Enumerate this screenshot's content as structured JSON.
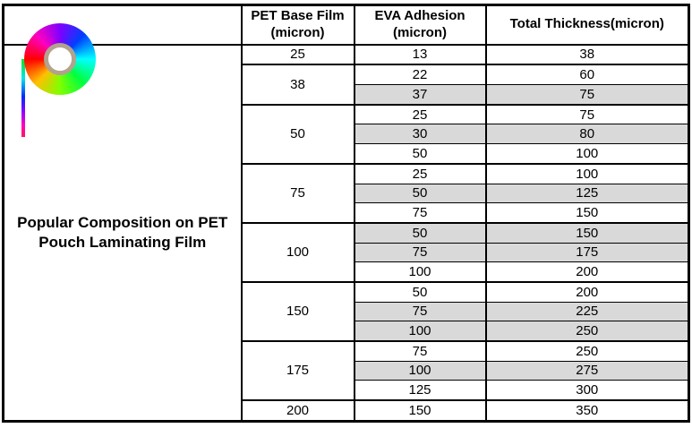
{
  "logo": {
    "name": "rainbow-film-roll",
    "hub_ring_color": "#b2a28e"
  },
  "left_panel": {
    "title_line1": "Popular Composition on PET",
    "title_line2": "Pouch Laminating Film"
  },
  "colors": {
    "shaded_row": "#d9d9d9",
    "table_border": "#000000",
    "background": "#ffffff"
  },
  "table": {
    "headers": {
      "pet": "PET Base Film\n(micron)",
      "eva": "EVA Adhesion\n(micron)",
      "total": "Total Thickness(micron)"
    },
    "rows": [
      {
        "pet": "25",
        "pet_rowspan": 1,
        "eva": "13",
        "total": "38",
        "shaded": false
      },
      {
        "pet": "38",
        "pet_rowspan": 2,
        "eva": "22",
        "total": "60",
        "shaded": false
      },
      {
        "eva": "37",
        "total": "75",
        "shaded": true
      },
      {
        "pet": "50",
        "pet_rowspan": 3,
        "eva": "25",
        "total": "75",
        "shaded": false
      },
      {
        "eva": "30",
        "total": "80",
        "shaded": true
      },
      {
        "eva": "50",
        "total": "100",
        "shaded": false
      },
      {
        "pet": "75",
        "pet_rowspan": 3,
        "eva": "25",
        "total": "100",
        "shaded": false
      },
      {
        "eva": "50",
        "total": "125",
        "shaded": true
      },
      {
        "eva": "75",
        "total": "150",
        "shaded": false
      },
      {
        "pet": "100",
        "pet_rowspan": 3,
        "eva": "50",
        "total": "150",
        "shaded": true
      },
      {
        "eva": "75",
        "total": "175",
        "shaded": true
      },
      {
        "eva": "100",
        "total": "200",
        "shaded": false
      },
      {
        "pet": "150",
        "pet_rowspan": 3,
        "eva": "50",
        "total": "200",
        "shaded": false
      },
      {
        "eva": "75",
        "total": "225",
        "shaded": true
      },
      {
        "eva": "100",
        "total": "250",
        "shaded": true
      },
      {
        "pet": "175",
        "pet_rowspan": 3,
        "eva": "75",
        "total": "250",
        "shaded": false
      },
      {
        "eva": "100",
        "total": "275",
        "shaded": true
      },
      {
        "eva": "125",
        "total": "300",
        "shaded": false
      },
      {
        "pet": "200",
        "pet_rowspan": 1,
        "eva": "150",
        "total": "350",
        "shaded": false
      }
    ]
  }
}
